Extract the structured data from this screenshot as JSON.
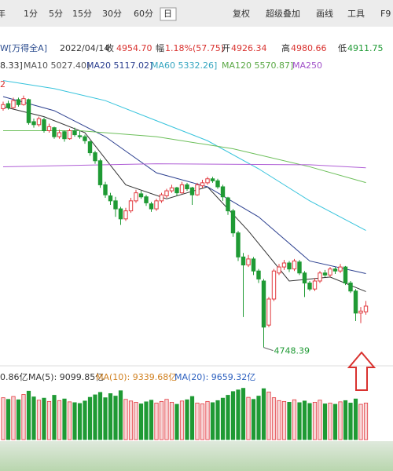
{
  "toolbar": {
    "left": [
      "年",
      "1分",
      "5分",
      "15分",
      "30分",
      "60分",
      "日"
    ],
    "right": [
      "复权",
      "超级叠加",
      "画线",
      "工具",
      "F9"
    ]
  },
  "header": {
    "code": "W[万得全A]",
    "date": "2022/04/14",
    "close_label": "收",
    "close": "4954.70",
    "change_label": "幅",
    "change": "1.18%(57.75)",
    "open_label": "开",
    "open": "4926.34",
    "high_label": "高",
    "high": "4980.66",
    "low_label": "低",
    "low": "4911.75"
  },
  "ma_legend": [
    "8.33]",
    "MA10 5027.40]",
    "MA20 5117.02]",
    "MA60 5332.26]",
    "MA120 5570.87]",
    "MA250"
  ],
  "price_corner": "2",
  "volume_legend": [
    "0.86亿",
    "MA(5): 9099.85亿",
    "MA(10): 9339.68亿",
    "MA(20): 9659.32亿"
  ],
  "chart_data": [
    {
      "type": "candlestick",
      "ylim": [
        4700,
        6110
      ],
      "up_color": "#e23a3f",
      "down_color": "#1f9a34",
      "ohlc": [
        [
          5940,
          5975,
          5930,
          5960
        ],
        [
          5965,
          5980,
          5935,
          5945
        ],
        [
          5945,
          5995,
          5940,
          5980
        ],
        [
          5985,
          5995,
          5950,
          5960
        ],
        [
          5960,
          6005,
          5955,
          5990
        ],
        [
          5985,
          5990,
          5860,
          5870
        ],
        [
          5875,
          5890,
          5845,
          5860
        ],
        [
          5860,
          5900,
          5850,
          5890
        ],
        [
          5885,
          5895,
          5820,
          5830
        ],
        [
          5830,
          5865,
          5820,
          5850
        ],
        [
          5845,
          5850,
          5790,
          5800
        ],
        [
          5800,
          5835,
          5790,
          5820
        ],
        [
          5825,
          5830,
          5775,
          5790
        ],
        [
          5790,
          5840,
          5785,
          5830
        ],
        [
          5830,
          5845,
          5800,
          5810
        ],
        [
          5805,
          5830,
          5790,
          5800
        ],
        [
          5800,
          5810,
          5765,
          5780
        ],
        [
          5775,
          5780,
          5705,
          5720
        ],
        [
          5720,
          5730,
          5665,
          5680
        ],
        [
          5680,
          5690,
          5545,
          5560
        ],
        [
          5560,
          5575,
          5495,
          5510
        ],
        [
          5505,
          5520,
          5460,
          5480
        ],
        [
          5480,
          5500,
          5400,
          5440
        ],
        [
          5440,
          5450,
          5360,
          5390
        ],
        [
          5390,
          5445,
          5380,
          5430
        ],
        [
          5430,
          5495,
          5420,
          5480
        ],
        [
          5480,
          5535,
          5470,
          5520
        ],
        [
          5515,
          5530,
          5490,
          5500
        ],
        [
          5500,
          5510,
          5455,
          5470
        ],
        [
          5465,
          5475,
          5425,
          5440
        ],
        [
          5440,
          5490,
          5430,
          5480
        ],
        [
          5480,
          5520,
          5470,
          5510
        ],
        [
          5505,
          5540,
          5495,
          5530
        ],
        [
          5530,
          5560,
          5520,
          5545
        ],
        [
          5545,
          5550,
          5505,
          5520
        ],
        [
          5520,
          5575,
          5515,
          5560
        ],
        [
          5560,
          5570,
          5530,
          5540
        ],
        [
          5545,
          5550,
          5460,
          5510
        ],
        [
          5510,
          5570,
          5505,
          5560
        ],
        [
          5555,
          5585,
          5545,
          5570
        ],
        [
          5570,
          5600,
          5560,
          5590
        ],
        [
          5590,
          5600,
          5570,
          5580
        ],
        [
          5580,
          5590,
          5540,
          5550
        ],
        [
          5550,
          5560,
          5480,
          5500
        ],
        [
          5495,
          5500,
          5410,
          5430
        ],
        [
          5430,
          5440,
          5300,
          5320
        ],
        [
          5320,
          5330,
          5180,
          5200
        ],
        [
          5200,
          5220,
          4900,
          5160
        ],
        [
          5160,
          5210,
          5150,
          5190
        ],
        [
          5190,
          5200,
          5110,
          5130
        ],
        [
          5130,
          5140,
          5070,
          5090
        ],
        [
          5080,
          5090,
          4748.39,
          4850
        ],
        [
          4860,
          5000,
          4850,
          4990
        ],
        [
          4990,
          5140,
          4980,
          5130
        ],
        [
          5120,
          5165,
          5110,
          5150
        ],
        [
          5150,
          5185,
          5135,
          5170
        ],
        [
          5170,
          5180,
          5125,
          5140
        ],
        [
          5140,
          5190,
          5130,
          5180
        ],
        [
          5175,
          5185,
          5110,
          5120
        ],
        [
          5120,
          5130,
          5000,
          5070
        ],
        [
          5070,
          5080,
          5030,
          5040
        ],
        [
          5040,
          5095,
          5030,
          5080
        ],
        [
          5080,
          5130,
          5070,
          5120
        ],
        [
          5120,
          5135,
          5100,
          5110
        ],
        [
          5110,
          5150,
          5100,
          5140
        ],
        [
          5140,
          5150,
          5115,
          5130
        ],
        [
          5130,
          5165,
          5120,
          5150
        ],
        [
          5150,
          5155,
          5060,
          5070
        ],
        [
          5070,
          5080,
          5020,
          5030
        ],
        [
          5030,
          5040,
          4880,
          4920
        ],
        [
          4920,
          4950,
          4870,
          4930
        ],
        [
          4926.34,
          4980.66,
          4911.75,
          4954.7
        ]
      ],
      "lines": [
        {
          "color": "#333333",
          "x": [
            0,
            8,
            16,
            24,
            32,
            40,
            48,
            56,
            64,
            71
          ],
          "values": [
            5950,
            5900,
            5820,
            5560,
            5490,
            5550,
            5330,
            5080,
            5100,
            5027.4
          ]
        },
        {
          "color": "#2b3f8f",
          "x": [
            0,
            10,
            20,
            30,
            40,
            50,
            60,
            71
          ],
          "values": [
            6000,
            5930,
            5800,
            5620,
            5550,
            5400,
            5180,
            5117.02
          ]
        },
        {
          "color": "#36c3dc",
          "x": [
            0,
            10,
            20,
            30,
            40,
            50,
            60,
            71
          ],
          "values": [
            6080,
            6040,
            5980,
            5880,
            5780,
            5640,
            5480,
            5332.26
          ]
        },
        {
          "color": "#6cbf5a",
          "x": [
            0,
            15,
            30,
            45,
            60,
            71
          ],
          "values": [
            5830,
            5830,
            5800,
            5740,
            5650,
            5570.87
          ]
        },
        {
          "color": "#b05fd6",
          "x": [
            0,
            30,
            60,
            71
          ],
          "values": [
            5650,
            5665,
            5660,
            5645
          ]
        }
      ]
    },
    {
      "type": "bar",
      "ylim": [
        0,
        13000
      ],
      "values": [
        10200,
        9800,
        10500,
        9700,
        11000,
        11800,
        10400,
        9600,
        10100,
        9300,
        10800,
        9500,
        9900,
        9200,
        9000,
        8800,
        9400,
        10300,
        10900,
        11500,
        10200,
        11200,
        10600,
        11900,
        9800,
        9400,
        9100,
        8700,
        9200,
        9600,
        8900,
        9300,
        9800,
        9100,
        8600,
        9400,
        9700,
        10500,
        8900,
        8700,
        9300,
        9000,
        9500,
        10100,
        10800,
        11700,
        12100,
        12500,
        10300,
        9800,
        10600,
        12400,
        11600,
        10200,
        9500,
        9300,
        9100,
        9700,
        9000,
        9400,
        8800,
        9100,
        9600,
        8700,
        8900,
        8600,
        9200,
        9500,
        8900,
        9900,
        8600,
        8900
      ]
    }
  ]
}
